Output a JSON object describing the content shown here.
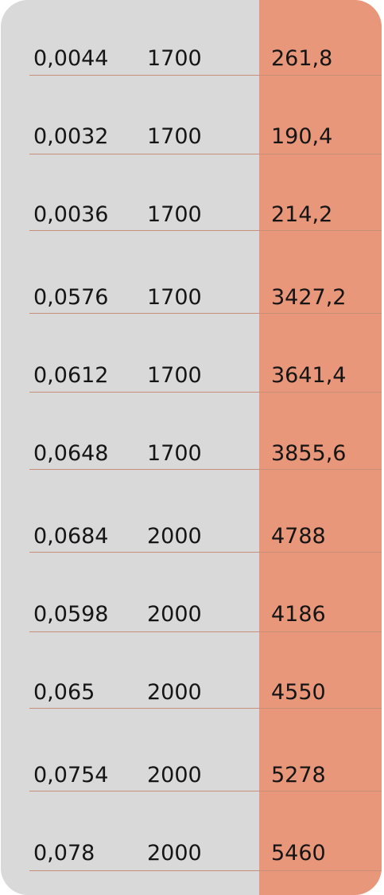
{
  "table": {
    "rows": [
      {
        "rate": "0,0044",
        "base": "1700",
        "total": "261,8"
      },
      {
        "rate": "0,0032",
        "base": "1700",
        "total": "190,4"
      },
      {
        "rate": "0,0036",
        "base": "1700",
        "total": "214,2"
      },
      {
        "rate": "0,0576",
        "base": "1700",
        "total": "3427,2"
      },
      {
        "rate": "0,0612",
        "base": "1700",
        "total": "3641,4"
      },
      {
        "rate": "0,0648",
        "base": "1700",
        "total": "3855,6"
      },
      {
        "rate": "0,0684",
        "base": "2000",
        "total": "4788"
      },
      {
        "rate": "0,0598",
        "base": "2000",
        "total": "4186"
      },
      {
        "rate": "0,065",
        "base": "2000",
        "total": "4550"
      },
      {
        "rate": "0,0754",
        "base": "2000",
        "total": "5278"
      },
      {
        "rate": "0,078",
        "base": "2000",
        "total": "5460"
      }
    ]
  },
  "colors": {
    "card_background": "#d9d9d9",
    "highlight_column": "#e8977a",
    "divider": "#c88f78",
    "text": "#151515"
  }
}
